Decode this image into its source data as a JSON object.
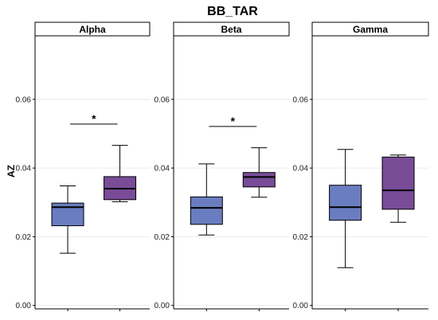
{
  "chart_data": {
    "type": "boxplot",
    "title": "BB_TAR",
    "ylabel": "AZ",
    "xlabel": "",
    "ylim": [
      -0.001,
      0.0785
    ],
    "yticks": [
      0.0,
      0.02,
      0.04,
      0.06
    ],
    "ytick_labels": [
      "0.00",
      "0.02",
      "0.04",
      "0.06"
    ],
    "grid": "horizontal",
    "colors": {
      "group1": "#6a7dc0",
      "group2": "#7a4c98",
      "grid": "#e6e6e6"
    },
    "panels": [
      {
        "name": "Alpha",
        "boxes": [
          {
            "whisker_low": 0.0152,
            "q1": 0.0232,
            "median": 0.0286,
            "q3": 0.0298,
            "whisker_high": 0.0348
          },
          {
            "whisker_low": 0.0302,
            "q1": 0.0308,
            "median": 0.034,
            "q3": 0.0375,
            "whisker_high": 0.0466
          }
        ],
        "significance": "*"
      },
      {
        "name": "Beta",
        "boxes": [
          {
            "whisker_low": 0.0205,
            "q1": 0.0236,
            "median": 0.0284,
            "q3": 0.0316,
            "whisker_high": 0.0412
          },
          {
            "whisker_low": 0.0315,
            "q1": 0.0345,
            "median": 0.0374,
            "q3": 0.0387,
            "whisker_high": 0.0459
          }
        ],
        "significance": "*"
      },
      {
        "name": "Gamma",
        "boxes": [
          {
            "whisker_low": 0.011,
            "q1": 0.0248,
            "median": 0.0286,
            "q3": 0.035,
            "whisker_high": 0.0454
          },
          {
            "whisker_low": 0.0242,
            "q1": 0.028,
            "median": 0.0335,
            "q3": 0.0432,
            "whisker_high": 0.0438
          }
        ],
        "significance": ""
      }
    ]
  }
}
